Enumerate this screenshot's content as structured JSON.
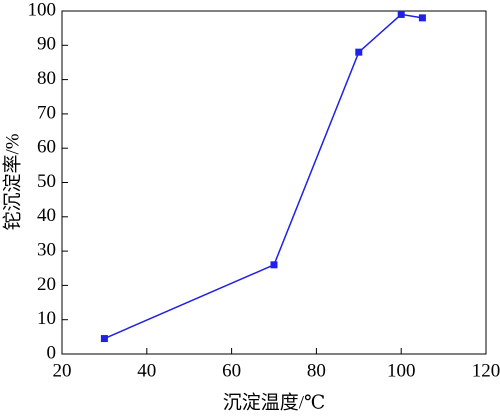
{
  "chart_data": {
    "type": "line",
    "x_label": "沉淀温度/℃",
    "y_label": "铊沉淀率/%",
    "x": [
      30,
      70,
      90,
      100,
      105
    ],
    "values": [
      4.5,
      26,
      88,
      99,
      98
    ],
    "color": "#2020e8",
    "xlim": [
      20,
      120
    ],
    "xticks": [
      20,
      40,
      60,
      80,
      100,
      120
    ],
    "ylim": [
      0,
      100
    ],
    "yticks": [
      0,
      10,
      20,
      30,
      40,
      50,
      60,
      70,
      80,
      90,
      100
    ]
  }
}
